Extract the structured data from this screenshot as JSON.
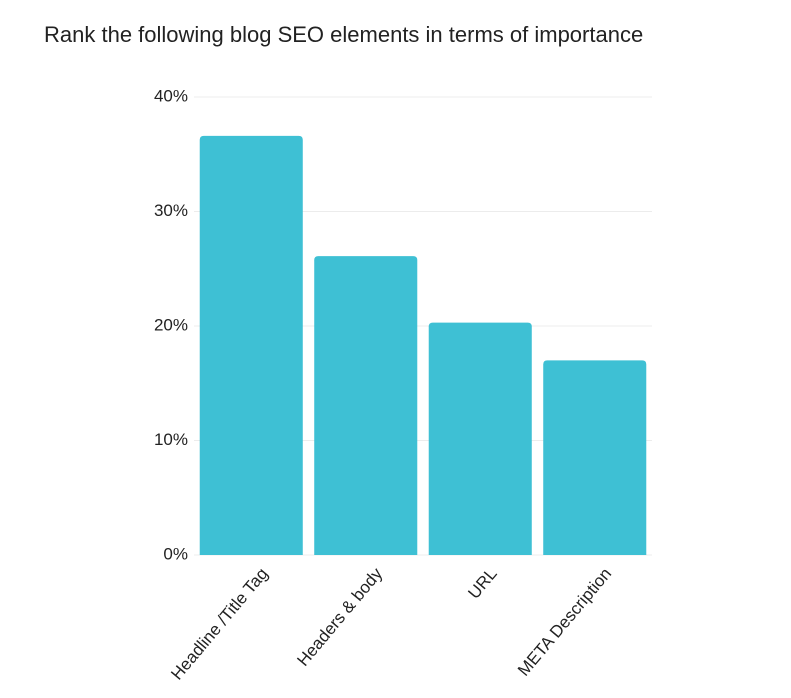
{
  "chart_data": {
    "type": "bar",
    "title": "Rank the following blog SEO elements in terms of importance",
    "categories": [
      "Headline /Title Tag",
      "Headers & body",
      "URL",
      "META Description"
    ],
    "values": [
      36.6,
      26.1,
      20.3,
      17.0
    ],
    "color": "#3ec0d4",
    "ylim": [
      0,
      40
    ],
    "yticks": [
      {
        "value": 0,
        "label": "0%"
      },
      {
        "value": 10,
        "label": "10%"
      },
      {
        "value": 20,
        "label": "20%"
      },
      {
        "value": 30,
        "label": "30%"
      },
      {
        "value": 40,
        "label": "40%"
      }
    ],
    "grid": true
  }
}
